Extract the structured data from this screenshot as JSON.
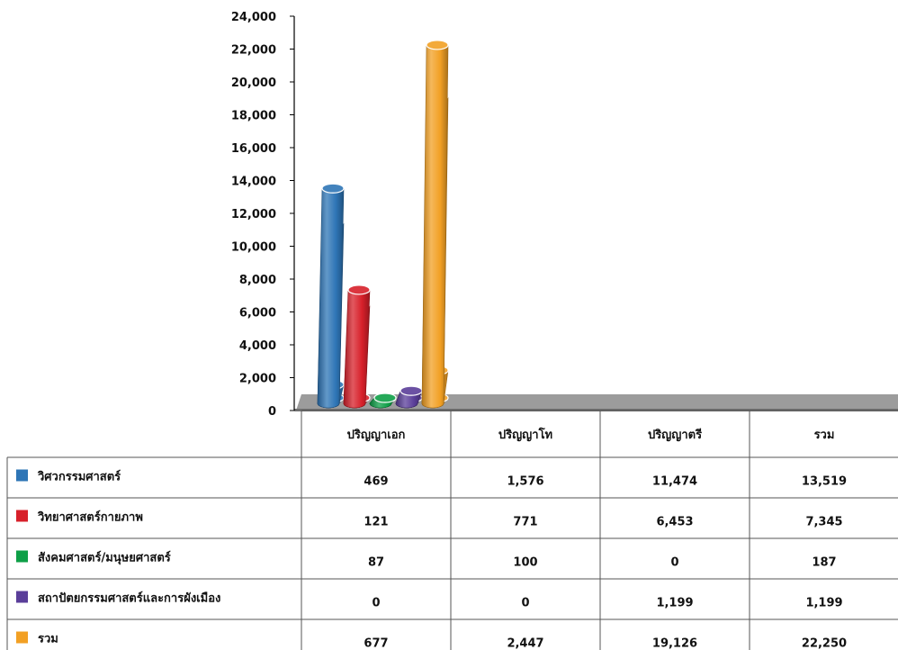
{
  "chart_data": {
    "type": "bar",
    "title": "",
    "xlabel": "",
    "ylabel": "",
    "ylim": [
      0,
      24000
    ],
    "yticks": [
      "0",
      "2,000",
      "4,000",
      "6,000",
      "8,000",
      "10,000",
      "12,000",
      "14,000",
      "16,000",
      "18,000",
      "20,000",
      "22,000",
      "24,000"
    ],
    "categories": [
      "ปริญญาเอก",
      "ปริญญาโท",
      "ปริญญาตรี",
      "รวม"
    ],
    "series": [
      {
        "name": "วิศวกรรมศาสตร์",
        "color": "#2E75B6",
        "values": [
          469,
          1576,
          11474,
          13519
        ],
        "labels": [
          "469",
          "1,576",
          "11,474",
          "13,519"
        ]
      },
      {
        "name": "วิทยาศาสตร์กายภาพ",
        "color": "#D7202A",
        "values": [
          121,
          771,
          6453,
          7345
        ],
        "labels": [
          "121",
          "771",
          "6,453",
          "7,345"
        ]
      },
      {
        "name": "สังคมศาสตร์/มนุษยศาสตร์",
        "color": "#0E9F47",
        "values": [
          87,
          100,
          0,
          187
        ],
        "labels": [
          "87",
          "100",
          "0",
          "187"
        ]
      },
      {
        "name": "สถาปัตยกรรมศาสตร์และการผังเมือง",
        "color": "#5A3E99",
        "values": [
          0,
          0,
          1199,
          1199
        ],
        "labels": [
          "0",
          "0",
          "1,199",
          "1,199"
        ]
      },
      {
        "name": "รวม",
        "color": "#F2A024",
        "values": [
          677,
          2447,
          19126,
          22250
        ],
        "labels": [
          "677",
          "2,447",
          "19,126",
          "22,250"
        ]
      }
    ],
    "grid": false,
    "legend": "data-table"
  }
}
